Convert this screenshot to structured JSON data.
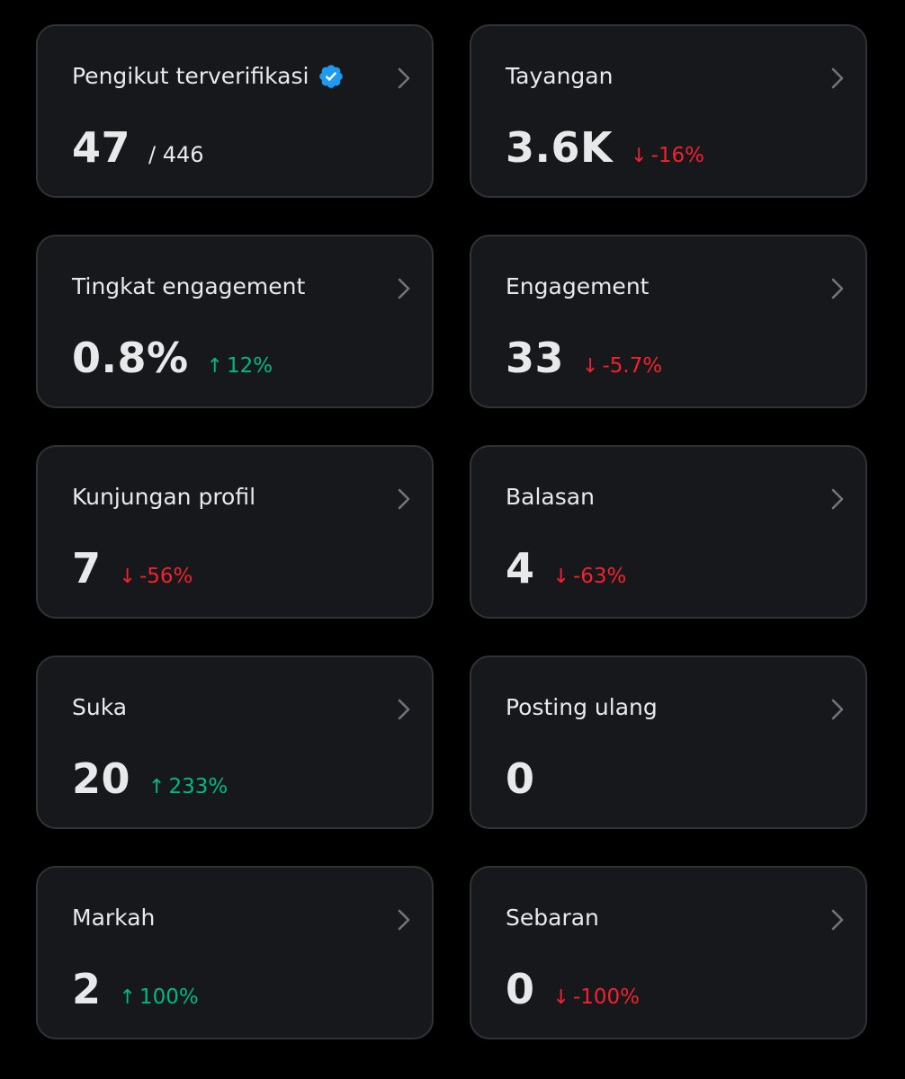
{
  "colors": {
    "background": "#000000",
    "card_background": "#16181c",
    "card_border": "#2f3336",
    "text_primary": "#e7e9ea",
    "negative": "#f4212e",
    "positive": "#00ba7c",
    "verified_badge": "#1d9bf0"
  },
  "cards": [
    {
      "title": "Pengikut terverifikasi",
      "value": "47",
      "secondary": "/ 446",
      "verified_badge": true
    },
    {
      "title": "Tayangan",
      "value": "3.6K",
      "change": "-16%",
      "direction": "down"
    },
    {
      "title": "Tingkat engagement",
      "value": "0.8%",
      "change": "12%",
      "direction": "up"
    },
    {
      "title": "Engagement",
      "value": "33",
      "change": "-5.7%",
      "direction": "down"
    },
    {
      "title": "Kunjungan profil",
      "value": "7",
      "change": "-56%",
      "direction": "down"
    },
    {
      "title": "Balasan",
      "value": "4",
      "change": "-63%",
      "direction": "down"
    },
    {
      "title": "Suka",
      "value": "20",
      "change": "233%",
      "direction": "up"
    },
    {
      "title": "Posting ulang",
      "value": "0"
    },
    {
      "title": "Markah",
      "value": "2",
      "change": "100%",
      "direction": "up"
    },
    {
      "title": "Sebaran",
      "value": "0",
      "change": "-100%",
      "direction": "down"
    }
  ],
  "icons": {
    "chevron": "chevron-right-icon",
    "verified": "verified-badge-icon",
    "arrow_down": "↓",
    "arrow_up": "↑"
  }
}
